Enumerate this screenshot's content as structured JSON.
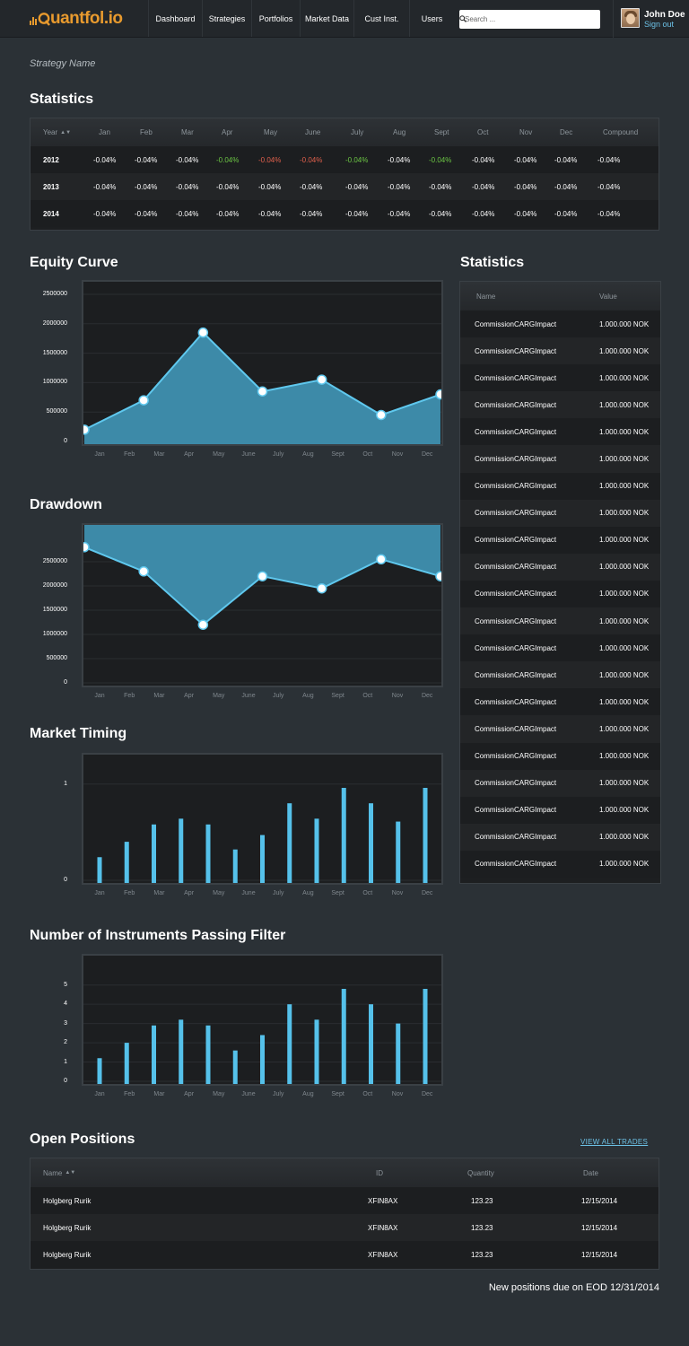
{
  "nav": {
    "logo_text": "uantfol.io",
    "items": [
      "Dashboard",
      "Strategies",
      "Portfolios",
      "Market Data",
      "Cust Inst.",
      "Users"
    ],
    "search_placeholder": "Search ...",
    "user_name": "John Doe",
    "sign_out": "Sign out"
  },
  "strategy_name": "Strategy Name",
  "statistics_title": "Statistics",
  "monthly_table": {
    "headers": [
      "Year",
      "Jan",
      "Feb",
      "Mar",
      "Apr",
      "May",
      "June",
      "July",
      "Aug",
      "Sept",
      "Oct",
      "Nov",
      "Dec",
      "Compound"
    ],
    "rows": [
      {
        "year": "2012",
        "values": [
          "-0.04%",
          "-0.04%",
          "-0.04%",
          "-0.04%",
          "-0.04%",
          "-0.04%",
          "-0.04%",
          "-0.04%",
          "-0.04%",
          "-0.04%",
          "-0.04%",
          "-0.04%",
          "-0.04%"
        ],
        "status": [
          "n",
          "n",
          "n",
          "pos",
          "neg",
          "neg",
          "pos",
          "n",
          "pos",
          "n",
          "n",
          "n",
          "n"
        ]
      },
      {
        "year": "2013",
        "values": [
          "-0.04%",
          "-0.04%",
          "-0.04%",
          "-0.04%",
          "-0.04%",
          "-0.04%",
          "-0.04%",
          "-0.04%",
          "-0.04%",
          "-0.04%",
          "-0.04%",
          "-0.04%",
          "-0.04%"
        ],
        "status": [
          "n",
          "n",
          "n",
          "n",
          "n",
          "n",
          "n",
          "n",
          "n",
          "n",
          "n",
          "n",
          "n"
        ]
      },
      {
        "year": "2014",
        "values": [
          "-0.04%",
          "-0.04%",
          "-0.04%",
          "-0.04%",
          "-0.04%",
          "-0.04%",
          "-0.04%",
          "-0.04%",
          "-0.04%",
          "-0.04%",
          "-0.04%",
          "-0.04%",
          "-0.04%"
        ],
        "status": [
          "n",
          "n",
          "n",
          "n",
          "n",
          "n",
          "n",
          "n",
          "n",
          "n",
          "n",
          "n",
          "n"
        ]
      }
    ]
  },
  "side_stats": {
    "title": "Statistics",
    "headers": [
      "Name",
      "Value"
    ],
    "rows": [
      [
        "CommissionCARGImpact",
        "1.000.000 NOK"
      ],
      [
        "CommissionCARGImpact",
        "1.000.000 NOK"
      ],
      [
        "CommissionCARGImpact",
        "1.000.000 NOK"
      ],
      [
        "CommissionCARGImpact",
        "1.000.000 NOK"
      ],
      [
        "CommissionCARGImpact",
        "1.000.000 NOK"
      ],
      [
        "CommissionCARGImpact",
        "1.000.000 NOK"
      ],
      [
        "CommissionCARGImpact",
        "1.000.000 NOK"
      ],
      [
        "CommissionCARGImpact",
        "1.000.000 NOK"
      ],
      [
        "CommissionCARGImpact",
        "1.000.000 NOK"
      ],
      [
        "CommissionCARGImpact",
        "1.000.000 NOK"
      ],
      [
        "CommissionCARGImpact",
        "1.000.000 NOK"
      ],
      [
        "CommissionCARGImpact",
        "1.000.000 NOK"
      ],
      [
        "CommissionCARGImpact",
        "1.000.000 NOK"
      ],
      [
        "CommissionCARGImpact",
        "1.000.000 NOK"
      ],
      [
        "CommissionCARGImpact",
        "1.000.000 NOK"
      ],
      [
        "CommissionCARGImpact",
        "1.000.000 NOK"
      ],
      [
        "CommissionCARGImpact",
        "1.000.000 NOK"
      ],
      [
        "CommissionCARGImpact",
        "1.000.000 NOK"
      ],
      [
        "CommissionCARGImpact",
        "1.000.000 NOK"
      ],
      [
        "CommissionCARGImpact",
        "1.000.000 NOK"
      ],
      [
        "CommissionCARGImpact",
        "1.000.000 NOK"
      ]
    ]
  },
  "chart_data": [
    {
      "type": "area",
      "title": "Equity Curve",
      "categories": [
        "Jan",
        "Feb",
        "Mar",
        "Apr",
        "May",
        "June",
        "July",
        "Aug",
        "Sept",
        "Oct",
        "Nov",
        "Dec"
      ],
      "x": [
        0,
        2,
        4,
        6,
        8,
        10,
        12
      ],
      "values": [
        200000,
        700000,
        1850000,
        850000,
        1050000,
        450000,
        800000
      ],
      "yticks": [
        0,
        500000,
        1000000,
        1500000,
        2000000,
        2500000
      ],
      "ylim": [
        0,
        2500000
      ],
      "fill": "#3d8aa8",
      "line": "#5fc8ee"
    },
    {
      "type": "area",
      "title": "Drawdown",
      "categories": [
        "Jan",
        "Feb",
        "Mar",
        "Apr",
        "May",
        "June",
        "July",
        "Aug",
        "Sept",
        "Oct",
        "Nov",
        "Dec"
      ],
      "x": [
        0,
        2,
        4,
        6,
        8,
        10,
        12
      ],
      "values": [
        2800000,
        2300000,
        1200000,
        2200000,
        1950000,
        2550000,
        2200000
      ],
      "yticks": [
        0,
        500000,
        1000000,
        1500000,
        2000000,
        2500000
      ],
      "ylim": [
        0,
        3000000
      ],
      "inverted_fill": true,
      "fill": "#3d8aa8",
      "line": "#5fc8ee"
    },
    {
      "type": "bar",
      "title": "Market Timing",
      "categories": [
        "Jan",
        "Feb",
        "Mar",
        "Apr",
        "May",
        "June",
        "July",
        "Aug",
        "Sept",
        "Oct",
        "Nov",
        "Dec"
      ],
      "values": [
        0.24,
        0.4,
        0.58,
        0.64,
        0.58,
        0.32,
        0.47,
        0.8,
        0.64,
        0.96,
        0.8,
        0.61,
        0.96
      ],
      "x": [
        0,
        1,
        2,
        3,
        4,
        5,
        6,
        7,
        8,
        9,
        10,
        11,
        12
      ],
      "yticks": [
        0,
        1
      ],
      "ylim": [
        0,
        1.1
      ],
      "color": "#55c1ea"
    },
    {
      "type": "bar",
      "title": "Number of Instruments Passing Filter",
      "categories": [
        "Jan",
        "Feb",
        "Mar",
        "Apr",
        "May",
        "June",
        "July",
        "Aug",
        "Sept",
        "Oct",
        "Nov",
        "Dec"
      ],
      "values": [
        1.2,
        2.0,
        2.9,
        3.2,
        2.9,
        1.6,
        2.4,
        4.0,
        3.2,
        4.8,
        4.0,
        3.0,
        4.8
      ],
      "x": [
        0,
        1,
        2,
        3,
        4,
        5,
        6,
        7,
        8,
        9,
        10,
        11,
        12
      ],
      "yticks": [
        0,
        1,
        2,
        3,
        4,
        5
      ],
      "ylim": [
        0,
        5.5
      ],
      "color": "#55c1ea"
    }
  ],
  "positions": {
    "title": "Open Positions",
    "view_all": "VIEW ALL TRADES",
    "headers": [
      "Name",
      "ID",
      "Quantity",
      "Date"
    ],
    "rows": [
      [
        "Holgberg Rurik",
        "XFIN8AX",
        "123.23",
        "12/15/2014"
      ],
      [
        "Holgberg Rurik",
        "XFIN8AX",
        "123.23",
        "12/15/2014"
      ],
      [
        "Holgberg Rurik",
        "XFIN8AX",
        "123.23",
        "12/15/2014"
      ]
    ],
    "footer": "New positions due on  EOD 12/31/2014"
  }
}
